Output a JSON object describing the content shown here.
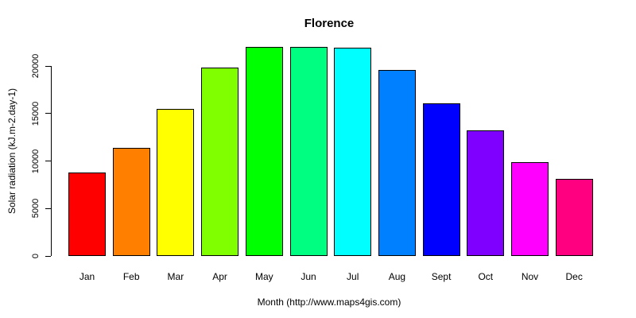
{
  "window": {
    "background": "#ffffff",
    "text_color": "#000000",
    "axis_color": "#000000"
  },
  "chart_data": {
    "type": "bar",
    "title": "Florence",
    "xlabel": "Month (http://www.maps4gis.com)",
    "ylabel": "Solar radiation (kJ.m-2.day-1)",
    "categories": [
      "Jan",
      "Feb",
      "Mar",
      "Apr",
      "May",
      "Jun",
      "Jul",
      "Aug",
      "Sept",
      "Oct",
      "Nov",
      "Dec"
    ],
    "values": [
      8800,
      11400,
      15500,
      19800,
      22000,
      22000,
      21900,
      19600,
      16100,
      13200,
      9900,
      8100
    ],
    "bar_colors": [
      "#FF0000",
      "#FF8000",
      "#FFFF00",
      "#80FF00",
      "#00FF00",
      "#00FF80",
      "#00FFFF",
      "#0080FF",
      "#0000FF",
      "#8000FF",
      "#FF00FF",
      "#FF0080"
    ],
    "bar_border_color": "#000000",
    "yticks": [
      0,
      5000,
      10000,
      15000,
      20000
    ],
    "ylim": [
      0,
      22340
    ],
    "grid": false,
    "legend": null
  }
}
